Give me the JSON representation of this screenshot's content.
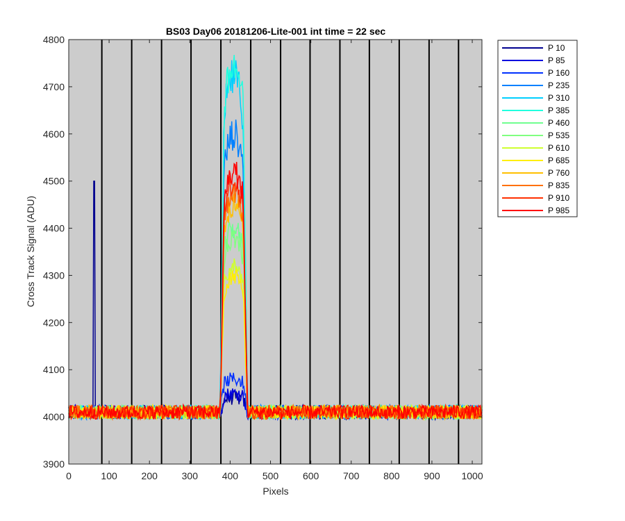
{
  "chart_data": {
    "type": "line",
    "title": "BS03 Day06 20181206-Lite-001 int time = 22 sec",
    "xlabel": "Pixels",
    "ylabel": "Cross Track Signal (ADU)",
    "xlim": [
      0,
      1024
    ],
    "ylim": [
      3900,
      4800
    ],
    "xticks": [
      0,
      100,
      200,
      300,
      400,
      500,
      600,
      700,
      800,
      900,
      1000
    ],
    "yticks": [
      3900,
      4000,
      4100,
      4200,
      4300,
      4400,
      4500,
      4600,
      4700,
      4800
    ],
    "vertical_lines_x": [
      82,
      156,
      230,
      303,
      377,
      451,
      525,
      598,
      672,
      745,
      819,
      893,
      966
    ],
    "background": "#cccccc",
    "legend_position": "outside-right",
    "grid": false,
    "baseline": 4010,
    "baseline_noise_pp": 30,
    "plateau_start_x": 375,
    "plateau_end_x": 443,
    "series": [
      {
        "name": "P 10",
        "color": "#00008f",
        "plateau_peak": 4040,
        "spike_x": 63,
        "spike_value": 4500
      },
      {
        "name": "P 85",
        "color": "#0000df",
        "plateau_peak": 4050
      },
      {
        "name": "P 160",
        "color": "#0030ff",
        "plateau_peak": 4080
      },
      {
        "name": "P 235",
        "color": "#0080ff",
        "plateau_peak": 4600
      },
      {
        "name": "P 310",
        "color": "#00cfff",
        "plateau_peak": 4720
      },
      {
        "name": "P 385",
        "color": "#20ffdf",
        "plateau_peak": 4740
      },
      {
        "name": "P 460",
        "color": "#70ff8f",
        "plateau_peak": 4400
      },
      {
        "name": "P 535",
        "color": "#80ff80",
        "plateau_peak": 4380
      },
      {
        "name": "P 610",
        "color": "#cfff30",
        "plateau_peak": 4320
      },
      {
        "name": "P 685",
        "color": "#ffef00",
        "plateau_peak": 4300
      },
      {
        "name": "P 760",
        "color": "#ffbf00",
        "plateau_peak": 4450
      },
      {
        "name": "P 835",
        "color": "#ff7000",
        "plateau_peak": 4480
      },
      {
        "name": "P 910",
        "color": "#ff3000",
        "plateau_peak": 4500
      },
      {
        "name": "P 985",
        "color": "#ff0000",
        "plateau_peak": 4520
      }
    ]
  }
}
